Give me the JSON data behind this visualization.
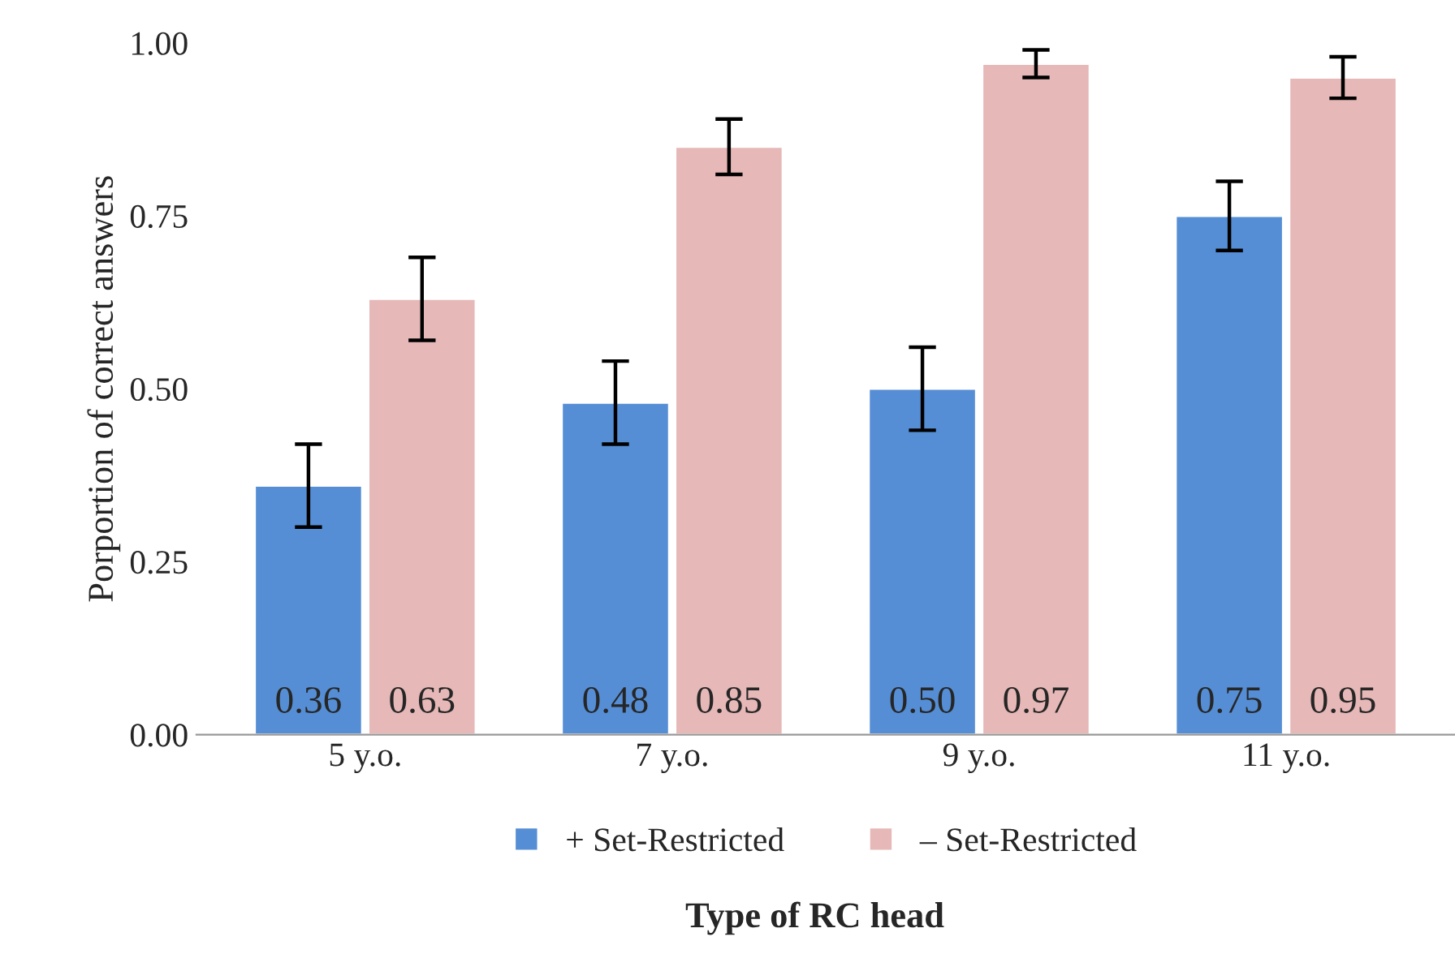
{
  "chart_data": {
    "type": "bar",
    "xlabel": "Type of RC head",
    "ylabel": "Porportion of correct answers",
    "categories": [
      "5 y.o.",
      "7 y.o.",
      "9 y.o.",
      "11 y.o."
    ],
    "series": [
      {
        "name": "+ Set-Restricted",
        "color": "#558ed5",
        "values": [
          0.36,
          0.48,
          0.5,
          0.75
        ],
        "errors": [
          0.06,
          0.06,
          0.06,
          0.05
        ],
        "value_labels": [
          "0.36",
          "0.48",
          "0.50",
          "0.75"
        ]
      },
      {
        "name": "– Set-Restricted",
        "color": "#e6b8b7",
        "values": [
          0.63,
          0.85,
          0.97,
          0.95
        ],
        "errors": [
          0.06,
          0.04,
          0.02,
          0.03
        ],
        "value_labels": [
          "0.63",
          "0.85",
          "0.97",
          "0.95"
        ]
      }
    ],
    "ylim": [
      0,
      1
    ],
    "yticks": [
      {
        "value": 0,
        "label": "0.00"
      },
      {
        "value": 0.25,
        "label": "0.25"
      },
      {
        "value": 0.5,
        "label": "0.50"
      },
      {
        "value": 0.75,
        "label": "0.75"
      },
      {
        "value": 1,
        "label": "1.00"
      }
    ],
    "grid": false,
    "legend": "bottom"
  }
}
